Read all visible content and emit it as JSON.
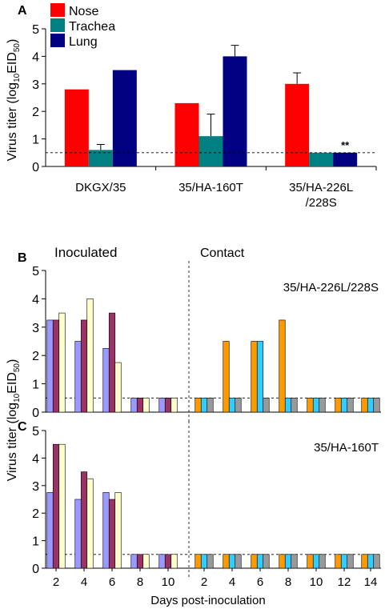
{
  "chart_data": [
    {
      "panel": "A",
      "type": "bar",
      "categories": [
        "DKGX/35",
        "35/HA-160T",
        "35/HA-226L\n/228S"
      ],
      "series": [
        {
          "name": "Nose",
          "color": "#ff0000",
          "values": [
            2.8,
            2.3,
            3.0
          ],
          "errors": [
            0,
            0,
            0.4
          ]
        },
        {
          "name": "Trachea",
          "color": "#008080",
          "values": [
            0.6,
            1.1,
            0.5
          ],
          "errors": [
            0.2,
            0.8,
            0
          ]
        },
        {
          "name": "Lung",
          "color": "#000080",
          "values": [
            3.5,
            4.0,
            0.5
          ],
          "errors": [
            0,
            0.4,
            0
          ]
        }
      ],
      "ylim": [
        0,
        5
      ],
      "yticks": [
        "0",
        "1",
        "2",
        "3",
        "4",
        "5"
      ],
      "threshold": 0.5,
      "annotation": "**",
      "ylabel_main": "Virus titer (log",
      "ylabel_sub": "10",
      "ylabel_tail": "EID",
      "ylabel_sub2": "50",
      "ylabel_end": ")",
      "legend_position": "top-left"
    },
    {
      "panel": "B",
      "type": "bar",
      "annotation_title": "35/HA-226L/228S",
      "inoculated_label": "Inoculated",
      "contact_label": "Contact",
      "inoculated_days": [
        "2",
        "4",
        "6",
        "8",
        "10"
      ],
      "inoculated_colors": [
        "#9999ff",
        "#993366",
        "#ffffcc"
      ],
      "inoculated_values": [
        [
          3.25,
          3.25,
          3.5
        ],
        [
          2.5,
          3.25,
          4.0
        ],
        [
          2.25,
          3.5,
          1.75
        ],
        [
          0.5,
          0.5,
          0.5
        ],
        [
          0.5,
          0.5,
          0.5
        ]
      ],
      "contact_days": [
        "2",
        "4",
        "6",
        "8",
        "10",
        "12",
        "14"
      ],
      "contact_colors": [
        "#ff9900",
        "#33ccff",
        "#999999"
      ],
      "contact_values": [
        [
          0.5,
          0.5,
          0.5
        ],
        [
          2.5,
          0.5,
          0.5
        ],
        [
          2.5,
          2.5,
          0.5
        ],
        [
          3.25,
          0.5,
          0.5
        ],
        [
          0.5,
          0.5,
          0.5
        ],
        [
          0.5,
          0.5,
          0.5
        ],
        [
          0.5,
          0.5,
          0.5
        ]
      ],
      "ylim": [
        0,
        5
      ],
      "threshold": 0.5
    },
    {
      "panel": "C",
      "type": "bar",
      "annotation_title": "35/HA-160T",
      "inoculated_days": [
        "2",
        "4",
        "6",
        "8",
        "10"
      ],
      "inoculated_colors": [
        "#9999ff",
        "#993366",
        "#ffffcc"
      ],
      "inoculated_values": [
        [
          2.75,
          4.5,
          4.5
        ],
        [
          2.5,
          3.5,
          3.25
        ],
        [
          2.75,
          2.5,
          2.75
        ],
        [
          0.5,
          0.5,
          0.5
        ],
        [
          0.5,
          0.5,
          0.5
        ]
      ],
      "contact_days": [
        "2",
        "4",
        "6",
        "8",
        "10",
        "12",
        "14"
      ],
      "contact_colors": [
        "#ff9900",
        "#33ccff",
        "#999999"
      ],
      "contact_values": [
        [
          0.5,
          0.5,
          0.5
        ],
        [
          0.5,
          0.5,
          0.5
        ],
        [
          0.5,
          0.5,
          0.5
        ],
        [
          0.5,
          0.5,
          0.5
        ],
        [
          0.5,
          0.5,
          0.5
        ],
        [
          0.5,
          0.5,
          0.5
        ],
        [
          0.5,
          0.5,
          0.5
        ]
      ],
      "ylim": [
        0,
        5
      ],
      "threshold": 0.5
    }
  ],
  "labels": {
    "panel_a": "A",
    "panel_b": "B",
    "panel_c": "C",
    "y_ticks": [
      "0",
      "1",
      "2",
      "3",
      "4",
      "5"
    ],
    "y_title_main": "Virus titer (log",
    "y_title_sub": "10",
    "y_title_eid": "EID",
    "y_title_sub2": "50",
    "y_title_end": ")",
    "xlabel": "Days post-inoculation"
  }
}
